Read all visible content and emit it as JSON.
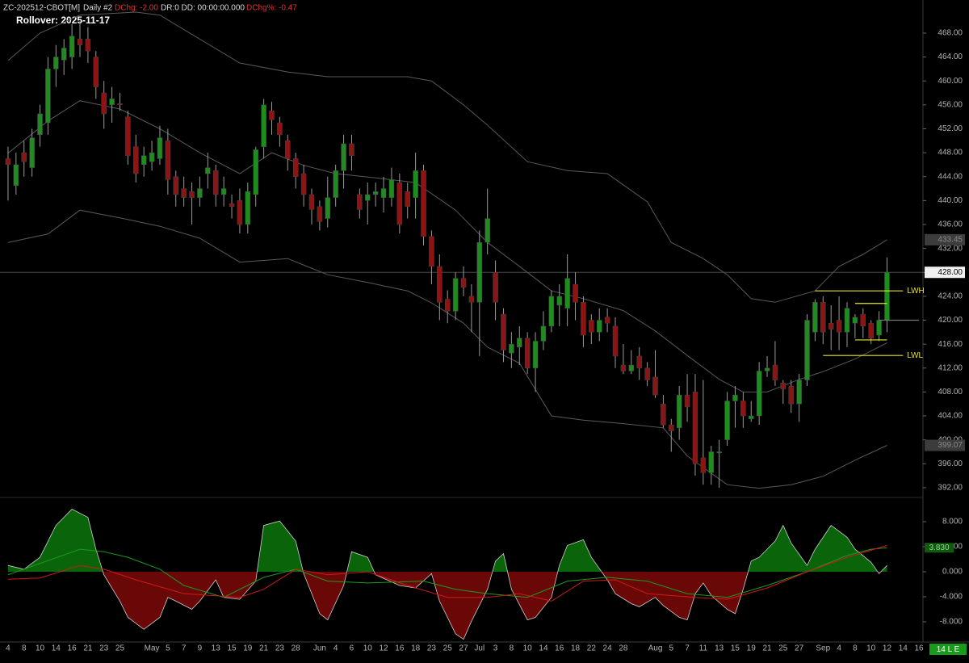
{
  "header": {
    "symbol": "ZC-202512-CBOT[M]",
    "interval": "Daily #2",
    "dchg": "DChg: -2.00",
    "dr_dd": "DR:0 DD: 00:00:00.000",
    "dchg_pct": "DChg%: -0.47",
    "rollover": "Rollover: 2025-11-17",
    "status": "14 L E"
  },
  "chart_data": {
    "type": "candlestick",
    "categories": [
      "4",
      null,
      "8",
      null,
      "10",
      null,
      "14",
      null,
      "16",
      null,
      "21",
      null,
      "23",
      null,
      "25",
      null,
      null,
      null,
      "May",
      null,
      "5",
      null,
      "7",
      null,
      "9",
      null,
      "13",
      null,
      "15",
      null,
      "19",
      null,
      "21",
      null,
      "23",
      null,
      "28",
      null,
      null,
      "Jun",
      null,
      "4",
      null,
      "6",
      null,
      "10",
      null,
      "12",
      null,
      "16",
      null,
      "18",
      null,
      "23",
      null,
      "25",
      null,
      "27",
      null,
      "Jul",
      null,
      "3",
      null,
      "8",
      null,
      "10",
      null,
      "14",
      null,
      "16",
      null,
      "18",
      null,
      "22",
      null,
      "24",
      null,
      "28",
      null,
      null,
      null,
      "Aug",
      null,
      "5",
      null,
      "7",
      null,
      "11",
      null,
      "13",
      null,
      "15",
      null,
      "19",
      null,
      "21",
      null,
      "25",
      null,
      "27",
      null,
      null,
      "Sep",
      null,
      "4",
      null,
      "8",
      null,
      "10",
      null,
      "12",
      null,
      "14",
      null,
      "16"
    ],
    "open": [
      447,
      442.5,
      448,
      445.5,
      451,
      453,
      462,
      463.5,
      464,
      467,
      467,
      464,
      458,
      456,
      456.2,
      454,
      449,
      446,
      446.5,
      447,
      450,
      444,
      442,
      441.5,
      440.5,
      444.5,
      445,
      441,
      439.5,
      440,
      436,
      441,
      449,
      455,
      453,
      450,
      447,
      444.5,
      441,
      439,
      437,
      440.5,
      445,
      449.5,
      441,
      440,
      441,
      440.5,
      440.5,
      443,
      441.5,
      440.5,
      445,
      434,
      429,
      423.5,
      421.5,
      427,
      424,
      423,
      433,
      428,
      421,
      414.5,
      415.5,
      417,
      412,
      416.5,
      419,
      422.5,
      422,
      426,
      423,
      420,
      418,
      420.5,
      419,
      412.5,
      411.5,
      414,
      412,
      410.5,
      406,
      402.5,
      402,
      407.5,
      408,
      397,
      394.5,
      397.8,
      400,
      406.5,
      406.5,
      403.5,
      404,
      411.5,
      412.5,
      409.5,
      409,
      406,
      410,
      418,
      423,
      419.5,
      420,
      418,
      419.5,
      421,
      419.5,
      417.5,
      420,
      null,
      null,
      null,
      null
    ],
    "high": [
      449,
      448,
      450,
      452,
      456,
      464,
      466,
      467,
      469.5,
      470,
      469,
      465,
      460,
      459,
      458,
      455,
      451,
      449,
      450,
      452.5,
      452,
      445,
      444,
      443,
      444,
      448,
      446,
      444,
      441,
      442,
      443,
      449,
      457,
      456.5,
      454,
      451,
      448,
      446,
      442,
      440,
      444,
      446,
      451,
      451,
      442,
      443,
      443,
      444,
      445.5,
      444.5,
      443,
      448,
      446,
      435,
      431,
      425,
      428,
      429,
      426,
      435,
      442,
      430,
      422,
      418,
      419,
      418,
      418,
      421.5,
      425,
      426,
      431,
      428,
      424,
      421,
      422,
      422,
      420.5,
      416,
      415,
      415.5,
      413,
      415,
      407.5,
      403.5,
      409,
      411,
      411,
      410,
      399,
      400,
      408,
      409,
      408,
      406.5,
      413,
      414,
      416.5,
      410,
      410,
      411,
      421,
      423.5,
      424,
      422.5,
      424,
      423,
      421,
      422,
      420,
      421.5,
      430.5,
      null,
      null,
      null,
      null
    ],
    "low": [
      440,
      441,
      444,
      444,
      449,
      451,
      459,
      461,
      462,
      464,
      463,
      457,
      452,
      453,
      455,
      446,
      443,
      444,
      445,
      446,
      441,
      439,
      439,
      436,
      439,
      442,
      439,
      439,
      437,
      434.5,
      434.5,
      439,
      447,
      451,
      449,
      445,
      442,
      439,
      436,
      435,
      435.5,
      439,
      442,
      445,
      437,
      436,
      439,
      438,
      439,
      434.5,
      437,
      437,
      432.5,
      426,
      420,
      419.5,
      420,
      424,
      418,
      414,
      431,
      420,
      413,
      412,
      412.5,
      411,
      408,
      415,
      418,
      419,
      419,
      420,
      415.5,
      416,
      416.5,
      418,
      412,
      411,
      411,
      410,
      409,
      407,
      402,
      398,
      400,
      403,
      394,
      392.5,
      392.5,
      392,
      399,
      402,
      402,
      403,
      402.5,
      410.5,
      409,
      406,
      404.5,
      403,
      409,
      416.5,
      416,
      415,
      415,
      415.5,
      417,
      417,
      416,
      416.5,
      418,
      null,
      null,
      null,
      null
    ],
    "close": [
      446,
      446,
      446.5,
      450.5,
      454.5,
      462,
      464,
      465.5,
      467.5,
      466,
      465,
      459,
      454.5,
      457,
      456,
      447.5,
      444.5,
      447.5,
      448,
      450.5,
      443.5,
      441,
      440.5,
      440.5,
      442,
      445.5,
      441,
      442,
      439,
      436,
      441.5,
      448.5,
      456,
      453.5,
      451,
      447,
      444,
      441,
      438.5,
      436.5,
      440.5,
      445,
      449.5,
      447.5,
      438.5,
      441,
      441.5,
      442,
      443.5,
      436,
      439,
      445,
      434,
      429,
      423,
      421.5,
      427,
      425.5,
      423,
      433,
      437,
      423,
      415,
      416,
      417,
      412,
      416.5,
      419,
      424,
      424,
      427,
      423,
      417.5,
      418,
      420,
      419.5,
      414,
      411.5,
      412.5,
      412,
      410,
      407.5,
      402.5,
      401.5,
      407.5,
      405.5,
      396,
      394.5,
      398,
      398,
      406.5,
      407.5,
      404,
      404,
      411.5,
      412,
      410,
      408.5,
      406,
      410,
      420,
      423,
      418,
      418.5,
      418,
      422,
      420.5,
      419,
      417,
      420,
      428,
      null,
      null,
      null,
      null
    ],
    "up_color": "#1f8c1f",
    "down_color": "#8c1414",
    "wick_color": "#9a9a9a",
    "ylim": [
      390.5,
      473.53
    ],
    "yticks": [
      {
        "value": 392,
        "label": "392.00"
      },
      {
        "value": 396,
        "label": "396.00"
      },
      {
        "value": 400,
        "label": "400.00"
      },
      {
        "value": 404,
        "label": "404.00"
      },
      {
        "value": 408,
        "label": "408.00"
      },
      {
        "value": 412,
        "label": "412.00"
      },
      {
        "value": 416,
        "label": "416.00"
      },
      {
        "value": 420,
        "label": "420.00"
      },
      {
        "value": 424,
        "label": "424.00"
      },
      {
        "value": 428,
        "label": "428.00"
      },
      {
        "value": 432,
        "label": "432.00"
      },
      {
        "value": 436,
        "label": "436.00"
      },
      {
        "value": 440,
        "label": "440.00"
      },
      {
        "value": 444,
        "label": "444.00"
      },
      {
        "value": 448,
        "label": "448.00"
      },
      {
        "value": 452,
        "label": "452.00"
      },
      {
        "value": 456,
        "label": "456.00"
      },
      {
        "value": 460,
        "label": "460.00"
      },
      {
        "value": 464,
        "label": "464.00"
      },
      {
        "value": 468,
        "label": "468.00"
      }
    ],
    "bands": [
      {
        "color": "#5a5a5a",
        "x": [
          0,
          4,
          9,
          16,
          19,
          24,
          29,
          35,
          40,
          45,
          50,
          53,
          57,
          60,
          65,
          70,
          75,
          80,
          83,
          87,
          90,
          93,
          96,
          101,
          104,
          107,
          110
        ],
        "values": [
          463.4,
          468,
          471,
          471.5,
          471,
          467,
          463,
          461.5,
          460.7,
          460.7,
          460.7,
          460,
          456,
          452.6,
          446.5,
          445,
          444.5,
          439.8,
          433,
          430.3,
          427.6,
          423.6,
          423,
          424.9,
          429,
          431,
          433.45
        ]
      },
      {
        "color": "#5a5a5a",
        "x": [
          0,
          5,
          9,
          14,
          19,
          24,
          29,
          33,
          37,
          41,
          46,
          51,
          56,
          60,
          64,
          68,
          72,
          77,
          81,
          85,
          89,
          92,
          95,
          99,
          102,
          106,
          110
        ],
        "values": [
          447.9,
          453.3,
          456.7,
          455.3,
          452,
          448,
          444.5,
          448,
          445.9,
          444.5,
          443.8,
          443,
          438.4,
          433,
          429,
          424.9,
          423.6,
          421.6,
          418.2,
          414.1,
          410.1,
          408,
          408,
          410.1,
          411.4,
          413.5,
          416.2
        ]
      },
      {
        "color": "#5a5a5a",
        "x": [
          0,
          5,
          9,
          14,
          19,
          24,
          29,
          35,
          40,
          45,
          50,
          53,
          57,
          60,
          64,
          68,
          72,
          77,
          82,
          85,
          90,
          94,
          98,
          102,
          106,
          110
        ],
        "values": [
          433,
          434.4,
          438.4,
          437.1,
          435.7,
          433.7,
          429.7,
          430.3,
          427.6,
          426.3,
          424.9,
          422.9,
          419.5,
          415.5,
          412.8,
          404,
          403.3,
          402.7,
          402,
          397.3,
          392.5,
          391.9,
          392.5,
          393.9,
          396.6,
          399.07
        ]
      }
    ],
    "last_price": {
      "value": 428,
      "label": "428.00"
    },
    "levels": [
      {
        "name": "LWH",
        "value": 424.9,
        "x": [
          101,
          112
        ],
        "color": "#e6e62e"
      },
      {
        "name": "LWL",
        "value": 414.1,
        "x": [
          102,
          112
        ],
        "color": "#e6e62e"
      },
      {
        "value": 422.8,
        "x": [
          106,
          110
        ],
        "color": "#e6e62e"
      },
      {
        "value": 416.7,
        "x": [
          106,
          110
        ],
        "color": "#e6e62e"
      },
      {
        "value": 420,
        "x": [
          109,
          114
        ],
        "color": "#777777"
      }
    ],
    "oscillator": {
      "ylim": [
        -11.23,
        11.61
      ],
      "yticks": [
        {
          "value": 8,
          "label": "8.000"
        },
        {
          "value": 4,
          "label": "4.000"
        },
        {
          "value": 0,
          "label": "0.000"
        },
        {
          "value": -4,
          "label": "-4.000"
        },
        {
          "value": -8,
          "label": "-8.000"
        }
      ],
      "up_color": "#0a640a",
      "down_color": "#6a0808",
      "x": [
        0,
        2,
        4,
        6,
        8,
        10,
        11,
        12,
        14,
        15,
        17,
        19,
        20,
        21,
        23,
        24,
        26,
        27,
        29,
        31,
        32,
        34,
        36,
        37,
        39,
        40,
        42,
        43,
        45,
        46,
        49,
        51,
        53,
        54,
        56,
        57,
        58,
        60,
        61,
        62,
        63,
        65,
        66,
        68,
        69,
        70,
        72,
        73,
        75,
        76,
        78,
        79,
        81,
        82,
        84,
        85,
        86,
        87,
        88,
        90,
        91,
        92,
        93,
        94,
        96,
        97,
        98,
        100,
        101,
        103,
        105,
        106,
        108,
        109,
        110
      ],
      "values": [
        1.0,
        0.4,
        2.3,
        7.4,
        10,
        8.7,
        3.6,
        -0.5,
        -4.7,
        -7.3,
        -9.2,
        -7.3,
        -4.1,
        -4.7,
        -6,
        -4.7,
        -1.3,
        -4.1,
        -4.4,
        -1.5,
        7.4,
        8.1,
        4.9,
        -0.3,
        -6.7,
        -7.7,
        -2.2,
        3.2,
        2.3,
        -0.5,
        -2.2,
        -2.6,
        -0.3,
        -4.7,
        -9.9,
        -10.8,
        -7.9,
        -2.8,
        1.7,
        2.9,
        -2.8,
        -7.7,
        -7.3,
        -4.1,
        1.0,
        4.2,
        5.1,
        2.3,
        -1.3,
        -3.5,
        -5.1,
        -5.6,
        -4.1,
        -5.4,
        -7.3,
        -7.7,
        -3.5,
        -1.8,
        -3.8,
        -6,
        -6.7,
        -2.8,
        1.7,
        2.3,
        4.9,
        7.4,
        4.6,
        1.0,
        3.6,
        7.4,
        5.5,
        3.6,
        1.5,
        -0.3,
        1.0
      ],
      "lines": [
        {
          "color": "#1f9a1f",
          "x": [
            0,
            9,
            12,
            15,
            19,
            22,
            27,
            32,
            36,
            40,
            45,
            52,
            56,
            60,
            65,
            70,
            75,
            80,
            85,
            90,
            95,
            100,
            105,
            108,
            110
          ],
          "values": [
            -0.5,
            3.6,
            3.2,
            2.3,
            0.4,
            -2.2,
            -4.1,
            -0.9,
            0.4,
            -1.5,
            -1.8,
            -1.5,
            -2.8,
            -3.5,
            -4.1,
            -1.5,
            -0.9,
            -1.5,
            -3.5,
            -4.1,
            -2.2,
            0,
            2.6,
            3.6,
            3.83
          ],
          "last_label": "3.830"
        },
        {
          "color": "#d01818",
          "x": [
            0,
            4,
            9,
            12,
            16,
            22,
            29,
            32,
            36,
            40,
            45,
            50,
            55,
            60,
            64,
            68,
            72,
            76,
            80,
            86,
            90,
            95,
            100,
            105,
            110
          ],
          "values": [
            -1.2,
            -1.0,
            1.0,
            0.4,
            -1.3,
            -3.5,
            -4.1,
            -2.8,
            0.4,
            -0.5,
            0,
            -2.2,
            -4.1,
            -4.1,
            -3.5,
            -4.7,
            -1.5,
            -1.3,
            -3.5,
            -4.1,
            -4.4,
            -2.6,
            0,
            2.3,
            4.2
          ]
        }
      ]
    }
  }
}
